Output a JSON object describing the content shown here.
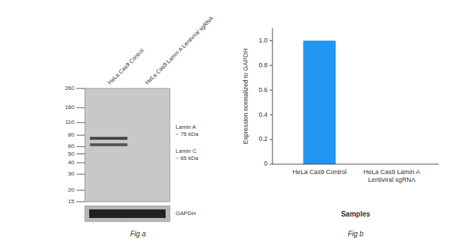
{
  "chart_data": [
    {
      "type": "blot",
      "caption": "Fig a",
      "categories": [
        "HeLa Cas9 Control",
        "HeLa Cas9 Lamin A Lentiviral sgRNA"
      ],
      "log": "y",
      "ylim": [
        15,
        260
      ],
      "yticks": [
        260,
        160,
        110,
        80,
        60,
        50,
        40,
        30,
        20,
        15
      ],
      "bands": [
        {
          "label": "Lamin A\n~ 75 kDa",
          "values": [
            74,
            null
          ]
        },
        {
          "label": "Lamin C\n~ 65 kDa",
          "values": [
            63,
            null
          ]
        }
      ],
      "loading_control": {
        "label": "GAPDH",
        "lanes": [
          true,
          true
        ]
      }
    },
    {
      "type": "bar",
      "caption": "Fig b",
      "categories": [
        "HeLa Cas9 Control",
        "HeLa Cas9 Lamin A Lentiviral sgRNA"
      ],
      "values": [
        1.0,
        0.0
      ],
      "color": "#2196f3",
      "ylim": [
        0,
        1.1
      ],
      "yticks": [
        0,
        0.2,
        0.4,
        0.6,
        0.8,
        {
          "value": 1.0,
          "label": "1.0"
        }
      ],
      "ylabel": "Expression normalized to GAPDH",
      "xlabel": "Samples"
    }
  ]
}
